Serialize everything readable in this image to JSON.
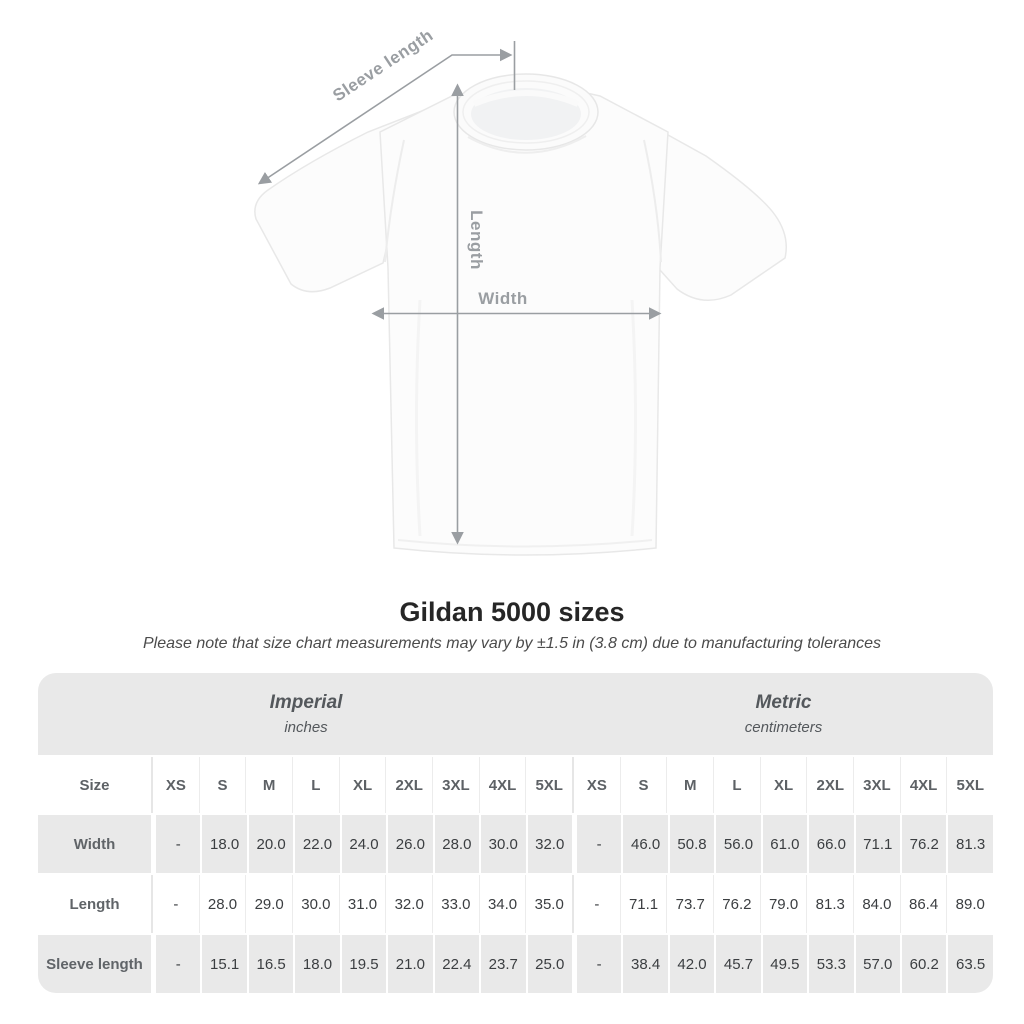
{
  "diagram": {
    "labels": {
      "sleeve_length": "Sleeve length",
      "length": "Length",
      "width": "Width"
    },
    "annotation_color": "#9a9ea2"
  },
  "title": "Gildan 5000 sizes",
  "subtitle": "Please note that size chart measurements may vary by ±1.5 in (3.8 cm) due to manufacturing tolerances",
  "table": {
    "size_col_header": "Size",
    "sizes": [
      "XS",
      "S",
      "M",
      "L",
      "XL",
      "2XL",
      "3XL",
      "4XL",
      "5XL"
    ],
    "unit_groups": [
      {
        "name": "Imperial",
        "unit": "inches"
      },
      {
        "name": "Metric",
        "unit": "centimeters"
      }
    ],
    "rows": [
      {
        "label": "Width",
        "imperial": [
          "-",
          "18.0",
          "20.0",
          "22.0",
          "24.0",
          "26.0",
          "28.0",
          "30.0",
          "32.0"
        ],
        "metric": [
          "-",
          "46.0",
          "50.8",
          "56.0",
          "61.0",
          "66.0",
          "71.1",
          "76.2",
          "81.3"
        ]
      },
      {
        "label": "Length",
        "imperial": [
          "-",
          "28.0",
          "29.0",
          "30.0",
          "31.0",
          "32.0",
          "33.0",
          "34.0",
          "35.0"
        ],
        "metric": [
          "-",
          "71.1",
          "73.7",
          "76.2",
          "79.0",
          "81.3",
          "84.0",
          "86.4",
          "89.0"
        ]
      },
      {
        "label": "Sleeve length",
        "imperial": [
          "-",
          "15.1",
          "16.5",
          "18.0",
          "19.5",
          "21.0",
          "22.4",
          "23.7",
          "25.0"
        ],
        "metric": [
          "-",
          "38.4",
          "42.0",
          "45.7",
          "49.5",
          "53.3",
          "57.0",
          "60.2",
          "63.5"
        ]
      }
    ],
    "colors": {
      "band": "#e9e9e9",
      "row_alt": "#e9e9e9"
    }
  }
}
